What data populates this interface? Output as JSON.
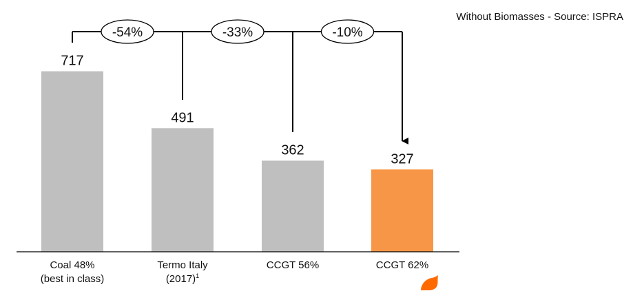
{
  "source_note": "Without Biomasses - Source: ISPRA",
  "colors": {
    "gray_bar": "#bfbfbf",
    "highlight_bar": "#f79646",
    "line": "#000000"
  },
  "chart_data": {
    "type": "bar",
    "title": "",
    "xlabel": "",
    "ylabel": "",
    "categories": [
      {
        "line1": "Coal 48%",
        "line2": "(best in class)",
        "sup": ""
      },
      {
        "line1": "Termo Italy",
        "line2": "(2017)",
        "sup": "1"
      },
      {
        "line1": "CCGT 56%",
        "line2": "",
        "sup": ""
      },
      {
        "line1": "CCGT 62%",
        "line2": "",
        "sup": ""
      }
    ],
    "values": [
      717,
      491,
      362,
      327
    ],
    "highlight_index": 3,
    "ylim": [
      0,
      850
    ],
    "grid": false,
    "annotations": [
      {
        "from": 0,
        "to": 1,
        "label": "-54%"
      },
      {
        "from": 1,
        "to": 2,
        "label": "-33%"
      },
      {
        "from": 2,
        "to": 3,
        "label": "-10%"
      }
    ]
  }
}
